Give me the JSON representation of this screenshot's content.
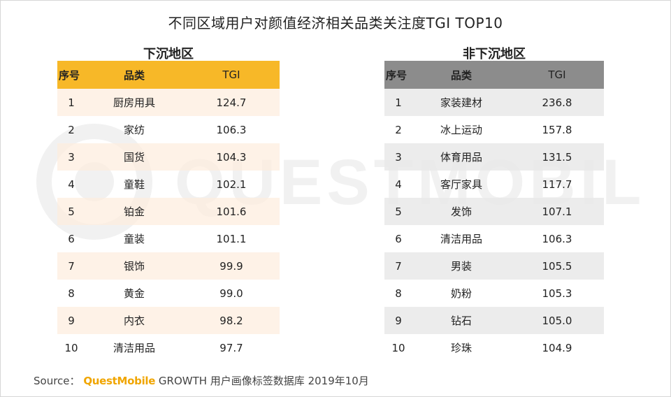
{
  "title": "不同区域用户对颜值经济相关品类关注度TGI TOP10",
  "watermark": "QUESTMOBILE",
  "left_panel": {
    "title": "下沉地区",
    "headers": {
      "rank": "序号",
      "category": "品类",
      "tgi": "TGI"
    },
    "rows": [
      {
        "rank": "1",
        "category": "厨房用具",
        "tgi": "124.7"
      },
      {
        "rank": "2",
        "category": "家纺",
        "tgi": "106.3"
      },
      {
        "rank": "3",
        "category": "国货",
        "tgi": "104.3"
      },
      {
        "rank": "4",
        "category": "童鞋",
        "tgi": "102.1"
      },
      {
        "rank": "5",
        "category": "铂金",
        "tgi": "101.6"
      },
      {
        "rank": "6",
        "category": "童装",
        "tgi": "101.1"
      },
      {
        "rank": "7",
        "category": "银饰",
        "tgi": "99.9"
      },
      {
        "rank": "8",
        "category": "黄金",
        "tgi": "99.0"
      },
      {
        "rank": "9",
        "category": "内衣",
        "tgi": "98.2"
      },
      {
        "rank": "10",
        "category": "清洁用品",
        "tgi": "97.7"
      }
    ]
  },
  "right_panel": {
    "title": "非下沉地区",
    "headers": {
      "rank": "序号",
      "category": "品类",
      "tgi": "TGI"
    },
    "rows": [
      {
        "rank": "1",
        "category": "家装建材",
        "tgi": "236.8"
      },
      {
        "rank": "2",
        "category": "冰上运动",
        "tgi": "157.8"
      },
      {
        "rank": "3",
        "category": "体育用品",
        "tgi": "131.5"
      },
      {
        "rank": "4",
        "category": "客厅家具",
        "tgi": "117.7"
      },
      {
        "rank": "5",
        "category": "发饰",
        "tgi": "107.1"
      },
      {
        "rank": "6",
        "category": "清洁用品",
        "tgi": "106.3"
      },
      {
        "rank": "7",
        "category": "男装",
        "tgi": "105.5"
      },
      {
        "rank": "8",
        "category": "奶粉",
        "tgi": "105.3"
      },
      {
        "rank": "9",
        "category": "钻石",
        "tgi": "105.0"
      },
      {
        "rank": "10",
        "category": "珍珠",
        "tgi": "104.9"
      }
    ]
  },
  "source": {
    "prefix": "Source：",
    "brand": "QuestMobile",
    "text": " GROWTH 用户画像标签数据库  2019年10月"
  },
  "colors": {
    "left_header": "#f7b828",
    "left_alt_row": "#fdeede",
    "right_header": "#8c8c8c",
    "right_alt_row": "#e9e9e9",
    "brand": "#f0a500"
  },
  "chart_data": [
    {
      "type": "table",
      "title": "下沉地区",
      "columns": [
        "序号",
        "品类",
        "TGI"
      ],
      "categories": [
        "厨房用具",
        "家纺",
        "国货",
        "童鞋",
        "铂金",
        "童装",
        "银饰",
        "黄金",
        "内衣",
        "清洁用品"
      ],
      "values": [
        124.7,
        106.3,
        104.3,
        102.1,
        101.6,
        101.1,
        99.9,
        99.0,
        98.2,
        97.7
      ]
    },
    {
      "type": "table",
      "title": "非下沉地区",
      "columns": [
        "序号",
        "品类",
        "TGI"
      ],
      "categories": [
        "家装建材",
        "冰上运动",
        "体育用品",
        "客厅家具",
        "发饰",
        "清洁用品",
        "男装",
        "奶粉",
        "钻石",
        "珍珠"
      ],
      "values": [
        236.8,
        157.8,
        131.5,
        117.7,
        107.1,
        106.3,
        105.5,
        105.3,
        105.0,
        104.9
      ]
    }
  ]
}
